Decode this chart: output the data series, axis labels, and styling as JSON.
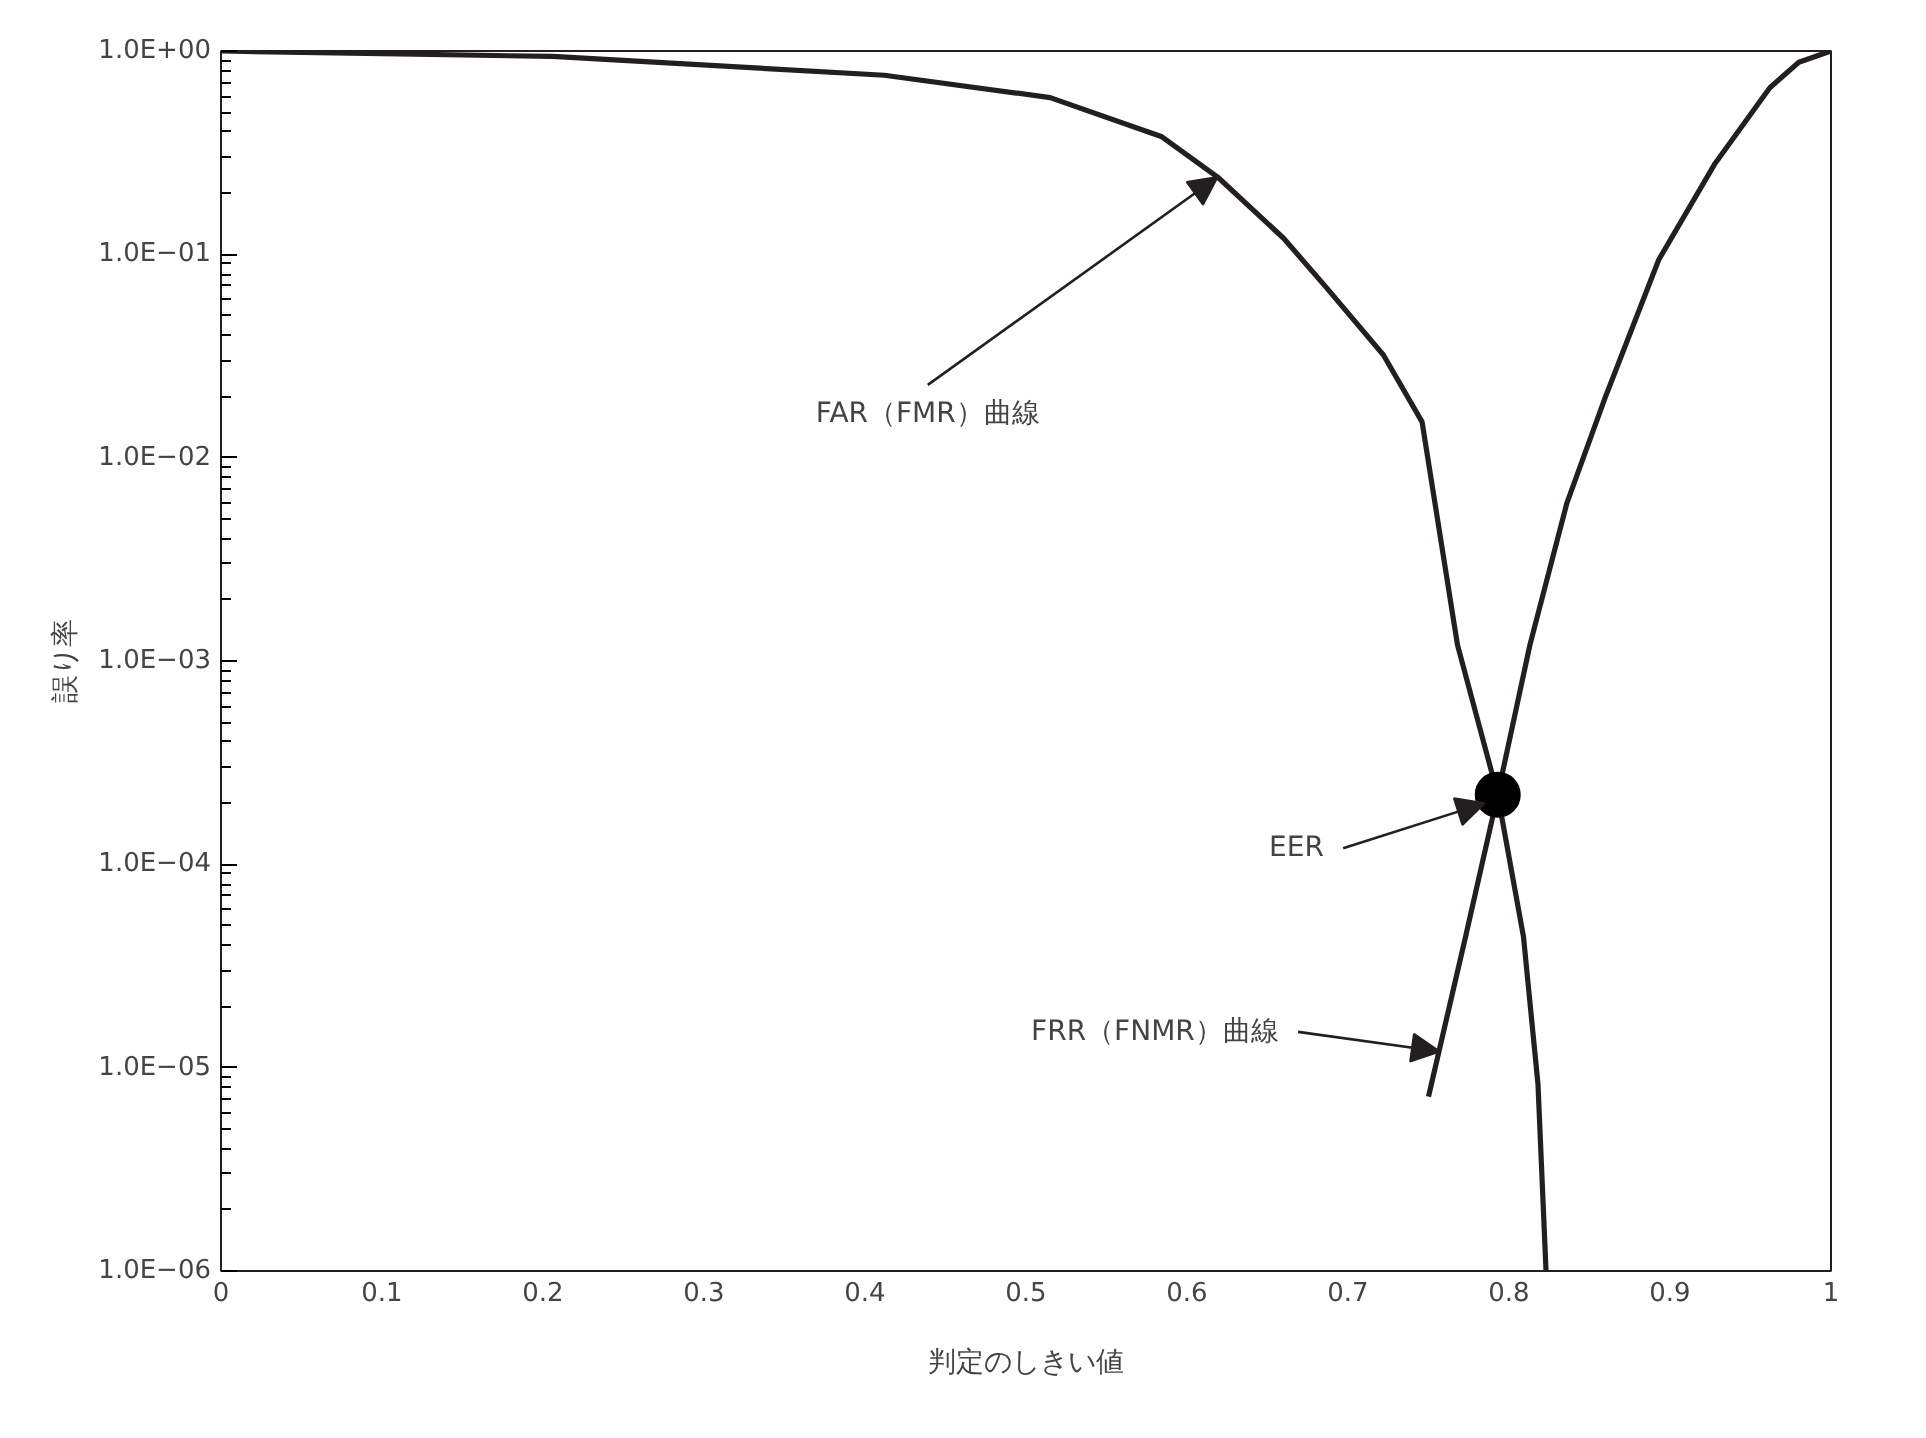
{
  "chart_data": {
    "type": "line",
    "xlabel": "判定のしきい値",
    "ylabel": "誤り率",
    "log": "y",
    "grid": false,
    "marker": "none",
    "line_style": "solid",
    "xlim": [
      0,
      1
    ],
    "ylim": [
      1e-06,
      1
    ],
    "xticks": [
      0,
      0.1,
      0.2,
      0.3,
      0.4,
      0.5,
      0.6,
      0.7,
      0.8,
      0.9,
      1
    ],
    "yticks": [
      {
        "value": 1,
        "label": "1.0E+00"
      },
      {
        "value": 0.1,
        "label": "1.0E−01"
      },
      {
        "value": 0.01,
        "label": "1.0E−02"
      },
      {
        "value": 0.001,
        "label": "1.0E−03"
      },
      {
        "value": 0.0001,
        "label": "1.0E−04"
      },
      {
        "value": 1e-05,
        "label": "1.0E−05"
      },
      {
        "value": 1e-06,
        "label": "1.0E−06"
      }
    ],
    "series": [
      {
        "color": "#231f20",
        "x": [
          0,
          0.206,
          0.412,
          0.515,
          0.584,
          0.619,
          0.66,
          0.687,
          0.722,
          0.746,
          0.768,
          0.793,
          0.809,
          0.818,
          0.823
        ],
        "values": [
          1,
          0.94,
          0.76,
          0.59,
          0.38,
          0.24,
          0.12,
          0.068,
          0.032,
          0.015,
          0.0012,
          0.00022,
          4.4e-05,
          8.3e-06,
          1e-06
        ]
      },
      {
        "color": "#231f20",
        "x": [
          0.75,
          0.773,
          0.793,
          0.813,
          0.836,
          0.86,
          0.893,
          0.928,
          0.962,
          0.98,
          1
        ],
        "values": [
          7.2e-06,
          4.4e-05,
          0.00022,
          0.0012,
          0.006,
          0.02,
          0.094,
          0.28,
          0.66,
          0.88,
          1
        ]
      },
      {
        "type": "scatter",
        "marker": "circle",
        "color": "#000000",
        "x": [
          0.793
        ],
        "values": [
          0.00022
        ]
      }
    ],
    "annotations": [
      {
        "text": "FAR（FMR）曲線",
        "x": 0.619,
        "y": 0.24
      },
      {
        "text": "EER",
        "x": 0.785,
        "y": 0.0002
      },
      {
        "text": "FRR（FNMR）曲線",
        "x": 0.757,
        "y": 1.2e-05
      }
    ]
  }
}
